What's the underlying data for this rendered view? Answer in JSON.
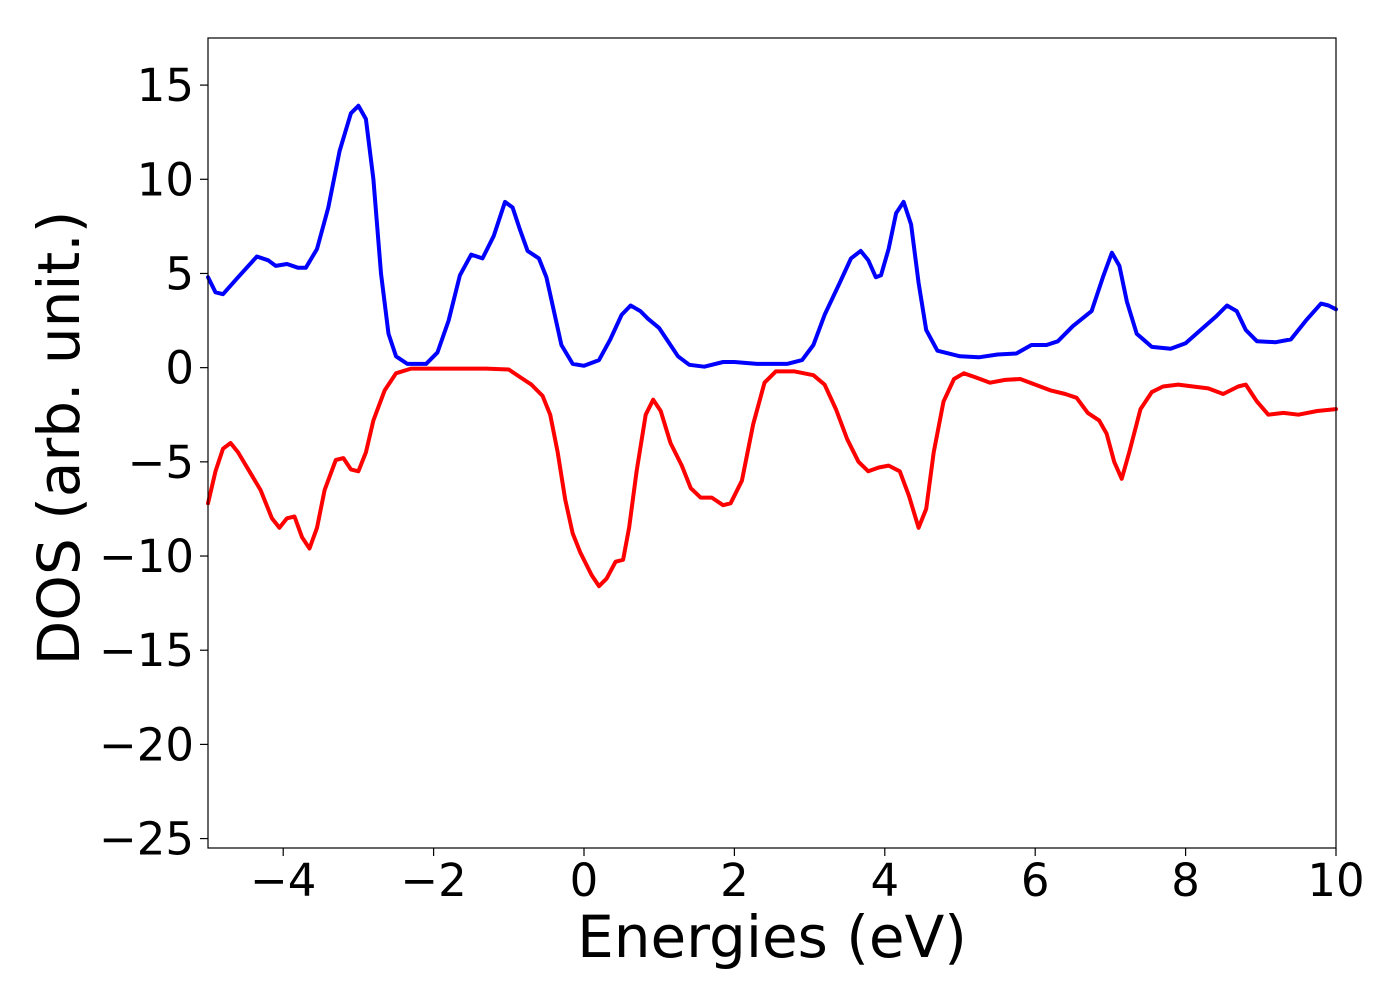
{
  "chart_data": {
    "type": "line",
    "title": "",
    "xlabel": "Energies (eV)",
    "ylabel": "DOS (arb. unit.)",
    "xlim": [
      -5,
      10
    ],
    "ylim": [
      -25.5,
      17.5
    ],
    "x_ticks": [
      -4,
      -2,
      0,
      2,
      4,
      6,
      8,
      10
    ],
    "x_tick_labels": [
      "−4",
      "−2",
      "0",
      "2",
      "4",
      "6",
      "8",
      "10"
    ],
    "y_ticks": [
      -25,
      -20,
      -15,
      -10,
      -5,
      0,
      5,
      10,
      15
    ],
    "y_tick_labels": [
      "−25",
      "−20",
      "−15",
      "−10",
      "−5",
      "0",
      "5",
      "10",
      "15"
    ],
    "grid": false,
    "legend": "none",
    "series": [
      {
        "color": "#0000ff",
        "points": [
          [
            -5.0,
            4.8
          ],
          [
            -4.9,
            4.0
          ],
          [
            -4.8,
            3.9
          ],
          [
            -4.6,
            4.8
          ],
          [
            -4.35,
            5.9
          ],
          [
            -4.2,
            5.7
          ],
          [
            -4.1,
            5.4
          ],
          [
            -3.95,
            5.5
          ],
          [
            -3.8,
            5.3
          ],
          [
            -3.7,
            5.3
          ],
          [
            -3.55,
            6.3
          ],
          [
            -3.4,
            8.5
          ],
          [
            -3.25,
            11.5
          ],
          [
            -3.1,
            13.5
          ],
          [
            -3.0,
            13.9
          ],
          [
            -2.9,
            13.2
          ],
          [
            -2.8,
            10.0
          ],
          [
            -2.7,
            5.0
          ],
          [
            -2.6,
            1.8
          ],
          [
            -2.5,
            0.6
          ],
          [
            -2.35,
            0.2
          ],
          [
            -2.1,
            0.2
          ],
          [
            -1.95,
            0.8
          ],
          [
            -1.8,
            2.5
          ],
          [
            -1.65,
            4.9
          ],
          [
            -1.5,
            6.0
          ],
          [
            -1.35,
            5.8
          ],
          [
            -1.2,
            7.0
          ],
          [
            -1.05,
            8.8
          ],
          [
            -0.95,
            8.5
          ],
          [
            -0.85,
            7.3
          ],
          [
            -0.75,
            6.2
          ],
          [
            -0.6,
            5.8
          ],
          [
            -0.5,
            4.8
          ],
          [
            -0.4,
            3.0
          ],
          [
            -0.3,
            1.2
          ],
          [
            -0.15,
            0.2
          ],
          [
            0.0,
            0.1
          ],
          [
            0.2,
            0.4
          ],
          [
            0.35,
            1.5
          ],
          [
            0.5,
            2.8
          ],
          [
            0.62,
            3.3
          ],
          [
            0.75,
            3.0
          ],
          [
            0.85,
            2.6
          ],
          [
            1.0,
            2.1
          ],
          [
            1.1,
            1.5
          ],
          [
            1.25,
            0.6
          ],
          [
            1.4,
            0.15
          ],
          [
            1.6,
            0.05
          ],
          [
            1.85,
            0.3
          ],
          [
            2.0,
            0.3
          ],
          [
            2.3,
            0.2
          ],
          [
            2.7,
            0.2
          ],
          [
            2.9,
            0.4
          ],
          [
            3.05,
            1.2
          ],
          [
            3.2,
            2.8
          ],
          [
            3.4,
            4.5
          ],
          [
            3.55,
            5.8
          ],
          [
            3.68,
            6.2
          ],
          [
            3.78,
            5.7
          ],
          [
            3.88,
            4.8
          ],
          [
            3.95,
            4.9
          ],
          [
            4.05,
            6.3
          ],
          [
            4.15,
            8.2
          ],
          [
            4.25,
            8.8
          ],
          [
            4.35,
            7.6
          ],
          [
            4.45,
            4.5
          ],
          [
            4.55,
            2.0
          ],
          [
            4.7,
            0.9
          ],
          [
            5.0,
            0.6
          ],
          [
            5.25,
            0.55
          ],
          [
            5.5,
            0.7
          ],
          [
            5.75,
            0.75
          ],
          [
            5.95,
            1.2
          ],
          [
            6.15,
            1.2
          ],
          [
            6.3,
            1.4
          ],
          [
            6.5,
            2.2
          ],
          [
            6.75,
            3.0
          ],
          [
            6.9,
            4.8
          ],
          [
            7.02,
            6.1
          ],
          [
            7.12,
            5.4
          ],
          [
            7.22,
            3.5
          ],
          [
            7.35,
            1.8
          ],
          [
            7.55,
            1.1
          ],
          [
            7.8,
            1.0
          ],
          [
            8.0,
            1.3
          ],
          [
            8.2,
            2.0
          ],
          [
            8.4,
            2.7
          ],
          [
            8.55,
            3.3
          ],
          [
            8.68,
            3.0
          ],
          [
            8.8,
            2.0
          ],
          [
            8.95,
            1.4
          ],
          [
            9.2,
            1.35
          ],
          [
            9.4,
            1.5
          ],
          [
            9.6,
            2.5
          ],
          [
            9.8,
            3.4
          ],
          [
            9.9,
            3.3
          ],
          [
            10.0,
            3.1
          ]
        ]
      },
      {
        "color": "#ff0000",
        "points": [
          [
            -5.0,
            -7.2
          ],
          [
            -4.9,
            -5.5
          ],
          [
            -4.8,
            -4.3
          ],
          [
            -4.7,
            -4.0
          ],
          [
            -4.6,
            -4.5
          ],
          [
            -4.45,
            -5.5
          ],
          [
            -4.3,
            -6.5
          ],
          [
            -4.15,
            -8.0
          ],
          [
            -4.05,
            -8.5
          ],
          [
            -3.95,
            -8.0
          ],
          [
            -3.85,
            -7.9
          ],
          [
            -3.75,
            -9.0
          ],
          [
            -3.65,
            -9.6
          ],
          [
            -3.55,
            -8.5
          ],
          [
            -3.45,
            -6.5
          ],
          [
            -3.3,
            -4.9
          ],
          [
            -3.2,
            -4.8
          ],
          [
            -3.1,
            -5.4
          ],
          [
            -3.0,
            -5.5
          ],
          [
            -2.9,
            -4.5
          ],
          [
            -2.8,
            -2.8
          ],
          [
            -2.65,
            -1.2
          ],
          [
            -2.5,
            -0.3
          ],
          [
            -2.3,
            -0.05
          ],
          [
            -1.8,
            -0.05
          ],
          [
            -1.3,
            -0.05
          ],
          [
            -1.0,
            -0.1
          ],
          [
            -0.85,
            -0.5
          ],
          [
            -0.7,
            -0.9
          ],
          [
            -0.55,
            -1.5
          ],
          [
            -0.45,
            -2.5
          ],
          [
            -0.35,
            -4.5
          ],
          [
            -0.25,
            -7.0
          ],
          [
            -0.15,
            -8.8
          ],
          [
            -0.05,
            -9.8
          ],
          [
            0.1,
            -11.0
          ],
          [
            0.2,
            -11.6
          ],
          [
            0.3,
            -11.2
          ],
          [
            0.42,
            -10.3
          ],
          [
            0.52,
            -10.2
          ],
          [
            0.6,
            -8.5
          ],
          [
            0.7,
            -5.5
          ],
          [
            0.82,
            -2.5
          ],
          [
            0.92,
            -1.7
          ],
          [
            1.02,
            -2.3
          ],
          [
            1.15,
            -4.0
          ],
          [
            1.3,
            -5.2
          ],
          [
            1.42,
            -6.4
          ],
          [
            1.55,
            -6.9
          ],
          [
            1.7,
            -6.9
          ],
          [
            1.85,
            -7.3
          ],
          [
            1.95,
            -7.2
          ],
          [
            2.1,
            -6.0
          ],
          [
            2.25,
            -3.0
          ],
          [
            2.4,
            -0.8
          ],
          [
            2.55,
            -0.2
          ],
          [
            2.8,
            -0.2
          ],
          [
            3.05,
            -0.4
          ],
          [
            3.2,
            -0.9
          ],
          [
            3.35,
            -2.2
          ],
          [
            3.5,
            -3.8
          ],
          [
            3.65,
            -5.0
          ],
          [
            3.78,
            -5.5
          ],
          [
            3.92,
            -5.3
          ],
          [
            4.05,
            -5.2
          ],
          [
            4.2,
            -5.5
          ],
          [
            4.32,
            -6.8
          ],
          [
            4.45,
            -8.5
          ],
          [
            4.55,
            -7.5
          ],
          [
            4.65,
            -4.5
          ],
          [
            4.78,
            -1.8
          ],
          [
            4.92,
            -0.6
          ],
          [
            5.05,
            -0.3
          ],
          [
            5.2,
            -0.5
          ],
          [
            5.4,
            -0.8
          ],
          [
            5.6,
            -0.65
          ],
          [
            5.8,
            -0.6
          ],
          [
            6.0,
            -0.9
          ],
          [
            6.2,
            -1.2
          ],
          [
            6.4,
            -1.4
          ],
          [
            6.55,
            -1.6
          ],
          [
            6.7,
            -2.4
          ],
          [
            6.85,
            -2.8
          ],
          [
            6.95,
            -3.5
          ],
          [
            7.05,
            -5.0
          ],
          [
            7.15,
            -5.9
          ],
          [
            7.25,
            -4.5
          ],
          [
            7.4,
            -2.2
          ],
          [
            7.55,
            -1.3
          ],
          [
            7.7,
            -1.0
          ],
          [
            7.9,
            -0.9
          ],
          [
            8.1,
            -1.0
          ],
          [
            8.3,
            -1.1
          ],
          [
            8.5,
            -1.4
          ],
          [
            8.7,
            -1.0
          ],
          [
            8.8,
            -0.9
          ],
          [
            8.95,
            -1.8
          ],
          [
            9.1,
            -2.5
          ],
          [
            9.3,
            -2.4
          ],
          [
            9.5,
            -2.5
          ],
          [
            9.75,
            -2.3
          ],
          [
            10.0,
            -2.2
          ]
        ]
      }
    ]
  }
}
